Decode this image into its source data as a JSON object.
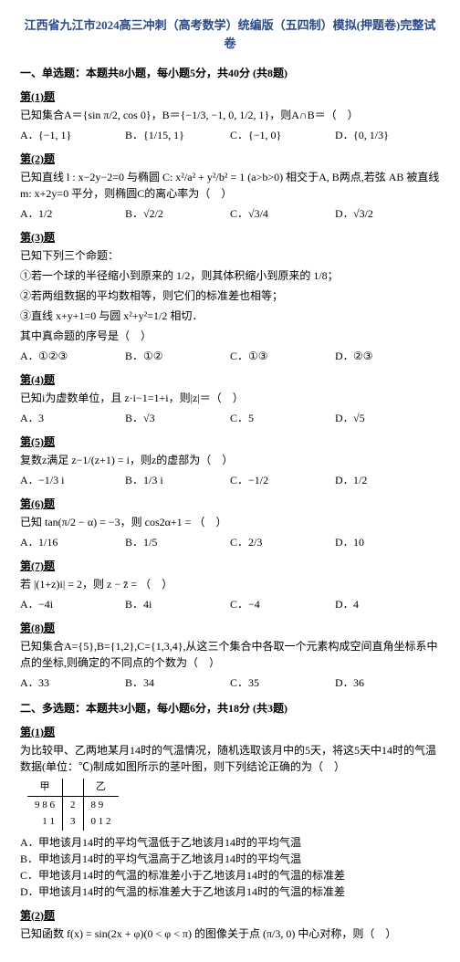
{
  "title": "江西省九江市2024高三冲刺（高考数学）统编版（五四制）模拟(押题卷)完整试卷",
  "section1": "一、单选题：本题共8小题，每小题5分，共40分 (共8题)",
  "section2": "二、多选题：本题共3小题，每小题6分，共18分 (共3题)",
  "q1n": "第(1)题",
  "q1s": "已知集合A＝{sin π/2, cos 0}，B＝{−1/3, −1, 0, 1/2, 1}，则A∩B＝（　）",
  "q1a": "{−1, 1}",
  "q1b": "{1/15, 1}",
  "q1c": "{−1, 0}",
  "q1d": "{0, 1/3}",
  "q2n": "第(2)题",
  "q2s": "已知直线 l : x−2y−2=0 与椭圆 C: x²/a² + y²/b² = 1 (a>b>0) 相交于A, B两点,若弦 AB 被直线 m: x+2y=0 平分，则椭圆C的离心率为（　）",
  "q2a": "1/2",
  "q2b": "√2/2",
  "q2c": "√3/4",
  "q2d": "√3/2",
  "q3n": "第(3)题",
  "q3s": "已知下列三个命题：",
  "q3l1": "①若一个球的半径缩小到原来的 1/2，则其体积缩小到原来的 1/8；",
  "q3l2": "②若两组数据的平均数相等，则它们的标准差也相等；",
  "q3l3": "③直线 x+y+1=0 与圆 x²+y²=1/2 相切．",
  "q3t": "其中真命题的序号是（　）",
  "q3a": "①②③",
  "q3b": "①②",
  "q3c": "①③",
  "q3d": "②③",
  "q4n": "第(4)题",
  "q4s": "已知i为虚数单位，且 z·i−1=1+i，则|z|＝（　）",
  "q4a": "3",
  "q4b": "√3",
  "q4c": "5",
  "q4d": "√5",
  "q5n": "第(5)题",
  "q5s": "复数z满足 z−1/(z+1) = i，则z的虚部为（　）",
  "q5a": "−1/3 i",
  "q5b": "1/3 i",
  "q5c": "−1/2",
  "q5d": "1/2",
  "q6n": "第(6)题",
  "q6s": "已知 tan(π/2 − α) = −3，则 cos2α+1 = （　）",
  "q6a": "1/16",
  "q6b": "1/5",
  "q6c": "2/3",
  "q6d": "10",
  "q7n": "第(7)题",
  "q7s": "若 |(1+z)i| = 2，则 z − z̄ = （　）",
  "q7a": "−4i",
  "q7b": "4i",
  "q7c": "−4",
  "q7d": "4",
  "q8n": "第(8)题",
  "q8s": "已知集合A={5},B={1,2},C={1,3,4},从这三个集合中各取一个元素构成空间直角坐标系中点的坐标,则确定的不同点的个数为（　）",
  "q8a": "33",
  "q8b": "34",
  "q8c": "35",
  "q8d": "36",
  "m1n": "第(1)题",
  "m1s": "为比较甲、乙两地某月14时的气温情况，随机选取该月中的5天，将这5天中14时的气温数据(单位：℃)制成如图所示的茎叶图，则下列结论正确的为（　）",
  "leaf": {
    "header": [
      "甲",
      "",
      "乙"
    ],
    "rows": [
      [
        "9  8  6",
        "2",
        "8  9"
      ],
      [
        "1  1",
        "3",
        "0  1  2"
      ]
    ]
  },
  "m1a": "甲地该月14时的平均气温低于乙地该月14时的平均气温",
  "m1b": "甲地该月14时的平均气温高于乙地该月14时的平均气温",
  "m1c": "甲地该月14时的气温的标准差小于乙地该月14时的气温的标准差",
  "m1d": "甲地该月14时的气温的标准差大于乙地该月14时的气温的标准差",
  "m2n": "第(2)题",
  "m2s": "已知函数 f(x) = sin(2x + φ)(0 < φ < π) 的图像关于点 (π/3, 0) 中心对称，则（　）"
}
